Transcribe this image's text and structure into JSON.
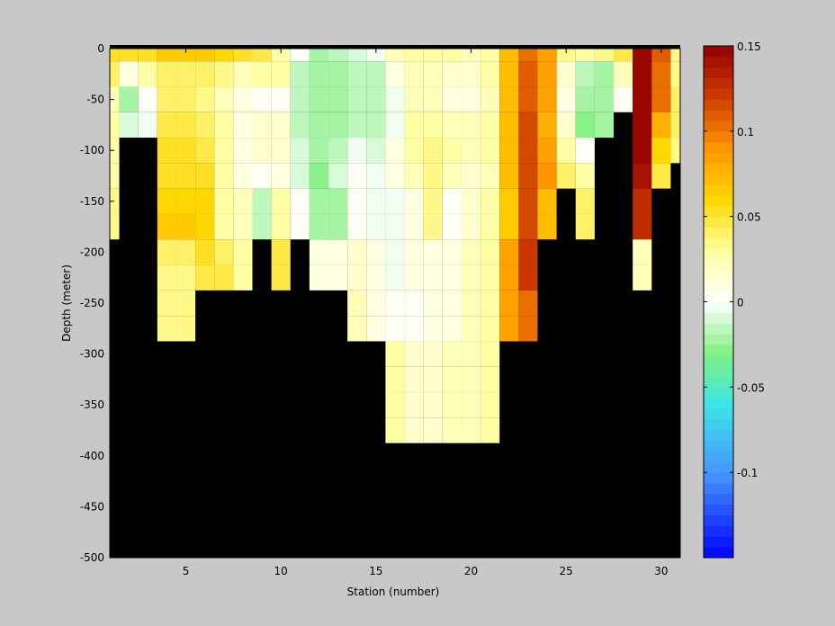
{
  "chart_data": {
    "type": "heatmap",
    "xlabel": "Station (number)",
    "ylabel": "Depth (meter)",
    "xlim": [
      1,
      31
    ],
    "ylim": [
      -500,
      0
    ],
    "x_ticks": [
      5,
      10,
      15,
      20,
      25,
      30
    ],
    "x_tick_labels": [
      "5",
      "10",
      "15",
      "20",
      "25",
      "30"
    ],
    "y_ticks": [
      0,
      -50,
      -100,
      -150,
      -200,
      -250,
      -300,
      -350,
      -400,
      -450,
      -500
    ],
    "y_tick_labels": [
      "0",
      "-50",
      "-100",
      "-150",
      "-200",
      "-250",
      "-300",
      "-350",
      "-400",
      "-450",
      "-500"
    ],
    "colorbar": {
      "clim": [
        -0.15,
        0.15
      ],
      "ticks": [
        0.15,
        0.1,
        0.05,
        0,
        -0.05,
        -0.1
      ],
      "tick_labels": [
        "0.15",
        "0.1",
        "0.05",
        "0",
        "-0.05",
        "-0.1"
      ],
      "colormap": "blue-cyan-green-white-yellow-orange-darkred",
      "levels": 48
    },
    "missing_color": "#000000",
    "cell_depth": 25,
    "stations": [
      {
        "station": 1,
        "max_depth": 200,
        "values": [
          0.055,
          0.04,
          0.02,
          0.03,
          0.025,
          0.03,
          0.035,
          0.035
        ]
      },
      {
        "station": 2,
        "max_depth": 100,
        "values": [
          0.05,
          0.01,
          -0.02,
          -0.01
        ]
      },
      {
        "station": 3,
        "max_depth": 100,
        "values": [
          0.05,
          0.03,
          0.0,
          -0.005
        ]
      },
      {
        "station": 4,
        "max_depth": 300,
        "values": [
          0.065,
          0.04,
          0.04,
          0.045,
          0.05,
          0.055,
          0.06,
          0.065,
          0.04,
          0.035,
          0.035,
          0.035
        ]
      },
      {
        "station": 5,
        "max_depth": 300,
        "values": [
          0.065,
          0.04,
          0.04,
          0.045,
          0.05,
          0.055,
          0.06,
          0.065,
          0.04,
          0.035,
          0.035,
          0.035
        ]
      },
      {
        "station": 6,
        "max_depth": 250,
        "values": [
          0.065,
          0.04,
          0.035,
          0.04,
          0.045,
          0.05,
          0.06,
          0.06,
          0.05,
          0.045
        ]
      },
      {
        "station": 7,
        "max_depth": 250,
        "values": [
          0.06,
          0.035,
          0.02,
          0.025,
          0.025,
          0.025,
          0.03,
          0.03,
          0.04,
          0.045
        ]
      },
      {
        "station": 8,
        "max_depth": 250,
        "values": [
          0.05,
          0.02,
          0.01,
          0.01,
          0.01,
          0.01,
          0.02,
          0.02,
          0.025,
          0.025
        ]
      },
      {
        "station": 9,
        "max_depth": 200,
        "values": [
          0.045,
          0.025,
          0.005,
          0.015,
          0.015,
          0.0,
          -0.015,
          -0.015
        ]
      },
      {
        "station": 10,
        "max_depth": 250,
        "values": [
          0.03,
          0.03,
          0.0,
          0.015,
          0.015,
          0.01,
          0.025,
          0.025,
          0.045,
          0.045
        ]
      },
      {
        "station": 11,
        "max_depth": 200,
        "values": [
          0.005,
          -0.015,
          -0.015,
          -0.015,
          -0.01,
          -0.01,
          0.005,
          0.005
        ]
      },
      {
        "station": 12,
        "max_depth": 250,
        "values": [
          -0.02,
          -0.025,
          -0.025,
          -0.025,
          -0.025,
          -0.03,
          -0.02,
          -0.02,
          0.01,
          0.01
        ]
      },
      {
        "station": 13,
        "max_depth": 250,
        "values": [
          -0.015,
          -0.025,
          -0.025,
          -0.02,
          -0.015,
          -0.01,
          -0.02,
          -0.02,
          0.01,
          0.01
        ]
      },
      {
        "station": 14,
        "max_depth": 300,
        "values": [
          -0.01,
          -0.015,
          -0.015,
          -0.015,
          -0.005,
          0.0,
          0.0,
          0.0,
          0.015,
          0.015,
          0.02,
          0.02
        ]
      },
      {
        "station": 15,
        "max_depth": 300,
        "values": [
          -0.005,
          -0.015,
          -0.015,
          -0.015,
          -0.01,
          -0.005,
          -0.005,
          -0.005,
          0.01,
          0.01,
          0.01,
          0.01
        ]
      },
      {
        "station": 16,
        "max_depth": 400,
        "values": [
          0.02,
          0.01,
          -0.005,
          -0.005,
          0.01,
          0.01,
          -0.005,
          -0.005,
          -0.005,
          -0.005,
          0.0,
          0.0,
          0.03,
          0.03,
          0.03,
          0.03
        ]
      },
      {
        "station": 17,
        "max_depth": 400,
        "values": [
          0.025,
          0.02,
          0.02,
          0.025,
          0.025,
          0.02,
          0.01,
          0.01,
          0.01,
          0.01,
          0.005,
          0.005,
          0.015,
          0.015,
          0.015,
          0.015
        ]
      },
      {
        "station": 18,
        "max_depth": 400,
        "values": [
          0.025,
          0.02,
          0.02,
          0.025,
          0.035,
          0.035,
          0.035,
          0.035,
          0.01,
          0.01,
          0.01,
          0.01,
          0.015,
          0.015,
          0.015,
          0.015
        ]
      },
      {
        "station": 19,
        "max_depth": 400,
        "values": [
          0.025,
          0.015,
          0.01,
          0.02,
          0.025,
          0.02,
          0.005,
          0.005,
          0.01,
          0.01,
          0.01,
          0.01,
          0.02,
          0.02,
          0.02,
          0.02
        ]
      },
      {
        "station": 20,
        "max_depth": 400,
        "values": [
          0.02,
          0.015,
          0.01,
          0.02,
          0.02,
          0.015,
          0.015,
          0.015,
          0.02,
          0.02,
          0.02,
          0.02,
          0.02,
          0.02,
          0.02,
          0.02
        ]
      },
      {
        "station": 21,
        "max_depth": 400,
        "values": [
          0.03,
          0.025,
          0.02,
          0.025,
          0.025,
          0.02,
          0.025,
          0.025,
          0.025,
          0.025,
          0.025,
          0.025,
          0.03,
          0.03,
          0.03,
          0.03
        ]
      },
      {
        "station": 22,
        "max_depth": 300,
        "values": [
          0.07,
          0.07,
          0.07,
          0.07,
          0.07,
          0.07,
          0.065,
          0.065,
          0.085,
          0.085,
          0.085,
          0.085
        ]
      },
      {
        "station": 23,
        "max_depth": 300,
        "values": [
          0.1,
          0.11,
          0.11,
          0.115,
          0.115,
          0.115,
          0.115,
          0.115,
          0.12,
          0.12,
          0.105,
          0.105
        ]
      },
      {
        "station": 24,
        "max_depth": 200,
        "values": [
          0.085,
          0.085,
          0.085,
          0.08,
          0.085,
          0.09,
          0.07,
          0.07
        ]
      },
      {
        "station": 25,
        "max_depth": 150,
        "values": [
          0.035,
          0.015,
          0.01,
          0.015,
          0.03,
          0.04
        ]
      },
      {
        "station": 26,
        "max_depth": 200,
        "values": [
          0.03,
          -0.015,
          -0.02,
          -0.03,
          0.0,
          0.03,
          0.04,
          0.04
        ]
      },
      {
        "station": 27,
        "max_depth": 100,
        "values": [
          0.035,
          -0.02,
          -0.025,
          -0.025
        ]
      },
      {
        "station": 28,
        "max_depth": 75,
        "values": [
          0.045,
          0.02,
          0.005
        ]
      },
      {
        "station": 29,
        "max_depth": 250,
        "values": [
          0.15,
          0.15,
          0.15,
          0.15,
          0.15,
          0.14,
          0.13,
          0.13,
          0.02,
          0.02
        ]
      },
      {
        "station": 30,
        "max_depth": 150,
        "values": [
          0.11,
          0.105,
          0.105,
          0.08,
          0.06,
          0.045
        ]
      },
      {
        "station": 31,
        "max_depth": 125,
        "values": [
          0.035,
          0.035,
          0.04,
          0.04,
          0.035
        ]
      }
    ]
  }
}
